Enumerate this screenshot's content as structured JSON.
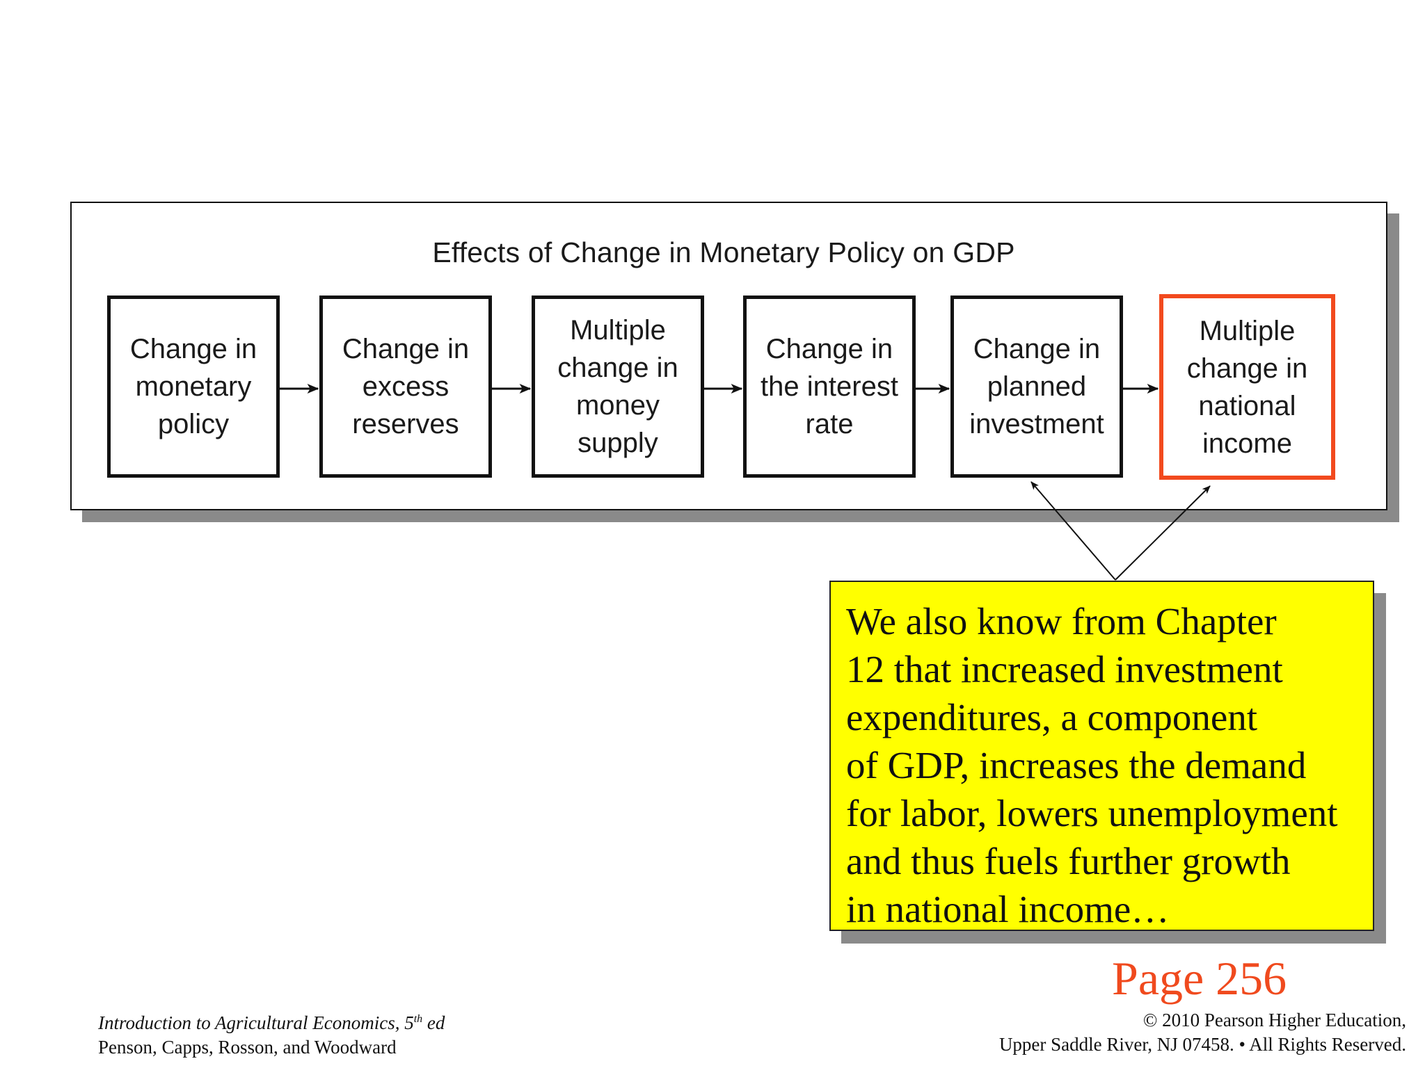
{
  "diagram": {
    "title": "Effects of Change in Monetary Policy on GDP",
    "steps": [
      {
        "label": "Change in\nmonetary\npolicy",
        "highlighted": false
      },
      {
        "label": "Change in\nexcess\nreserves",
        "highlighted": false
      },
      {
        "label": "Multiple\nchange in\nmoney\nsupply",
        "highlighted": false
      },
      {
        "label": "Change in\nthe interest\nrate",
        "highlighted": false
      },
      {
        "label": "Change in\nplanned\ninvestment",
        "highlighted": false
      },
      {
        "label": "Multiple\nchange in\nnational\nincome",
        "highlighted": true
      }
    ],
    "highlight_color": "#f24a1e"
  },
  "callout": {
    "lines": [
      "We also know from Chapter",
      "12 that increased investment",
      "expenditures, a component",
      "of GDP, increases the demand",
      "for labor, lowers unemployment",
      "and thus fuels further growth",
      "in national income…"
    ],
    "background": "#ffff00"
  },
  "page_ref": "Page 256",
  "footer": {
    "book_title": "Introduction to Agricultural Economics, 5",
    "edition_sup": "th",
    "edition_suffix": " ed",
    "authors": "Penson, Capps, Rosson, and Woodward",
    "copyright_line1": "© 2010 Pearson Higher Education,",
    "copyright_line2": "Upper Saddle River, NJ 07458. • All Rights Reserved."
  }
}
